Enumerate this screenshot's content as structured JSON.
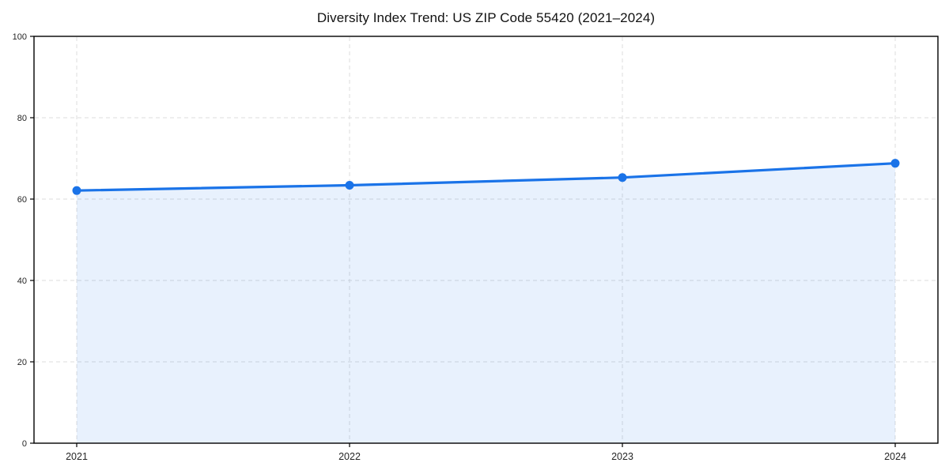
{
  "chart_data": {
    "type": "line",
    "title": "Diversity Index Trend: US ZIP Code 55420 (2021–2024)",
    "categories": [
      "2021",
      "2022",
      "2023",
      "2024"
    ],
    "values": [
      62.1,
      63.4,
      65.3,
      68.8
    ],
    "series_name": "Diversity Index",
    "xlabel": "",
    "ylabel": "",
    "ylim": [
      0,
      100
    ],
    "yticks": [
      0,
      20,
      40,
      60,
      80,
      100
    ],
    "grid": true,
    "grid_style": "dashed",
    "area_fill": true,
    "marker": "circle",
    "legend": "none",
    "colors": {
      "line": "#1a73e8",
      "marker": "#1a73e8",
      "area": "#1a73e8",
      "area_opacity": 0.1,
      "grid": "#dcdcdc",
      "axis": "#000000",
      "tick_label": "#262626",
      "title": "#111111",
      "background": "#ffffff"
    }
  }
}
